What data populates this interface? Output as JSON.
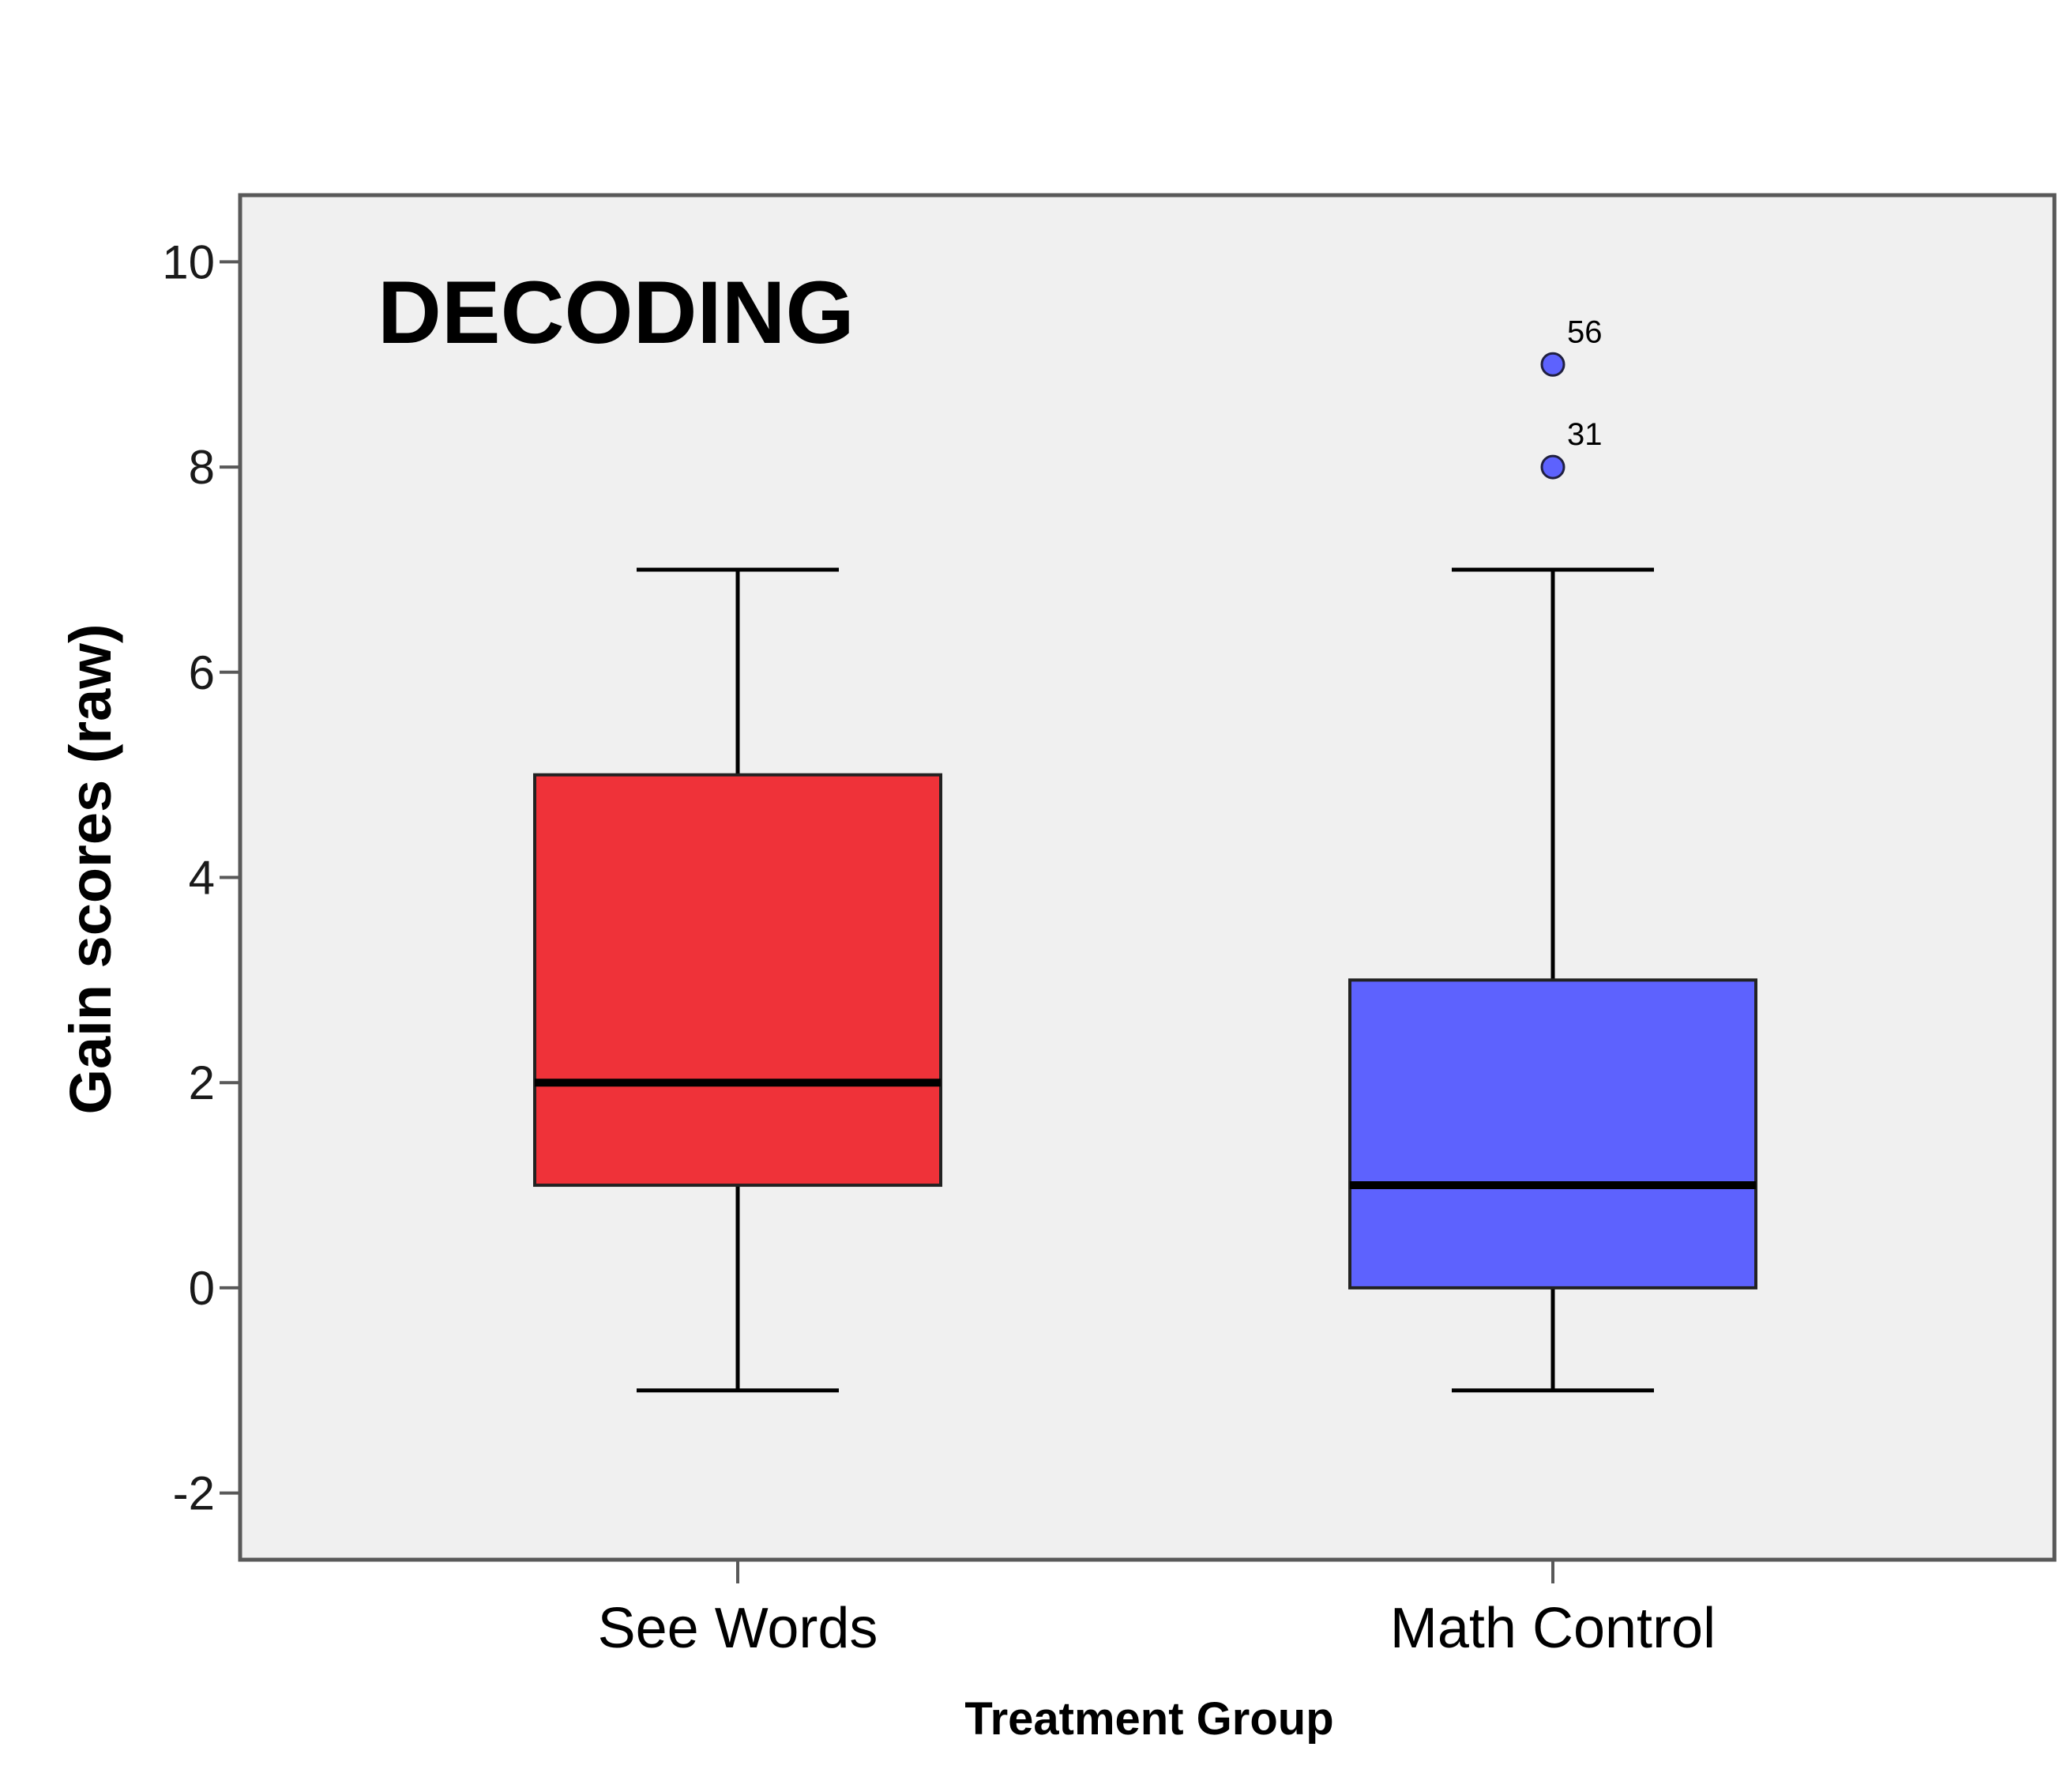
{
  "chart_data": {
    "type": "box",
    "title": "DECODING",
    "xlabel": "Treatment Group",
    "ylabel": "Gain scores (raw)",
    "ylim": [
      -2.65,
      10.65
    ],
    "yticks": [
      -2,
      0,
      2,
      4,
      6,
      8,
      10
    ],
    "categories": [
      "See Words",
      "Math Control"
    ],
    "grid": false,
    "legend": "none",
    "boxes": [
      {
        "category": "See Words",
        "whisker_low": -1,
        "q1": 1,
        "median": 2,
        "q3": 5,
        "whisker_high": 7,
        "color": "#ef3239",
        "outliers": []
      },
      {
        "category": "Math Control",
        "whisker_low": -1,
        "q1": 0,
        "median": 1,
        "q3": 3,
        "whisker_high": 7,
        "color": "#5d62fe",
        "outliers": [
          {
            "value": 8,
            "label": "31"
          },
          {
            "value": 9,
            "label": "56"
          }
        ]
      }
    ]
  },
  "colors": {
    "plot_background": "#f0f0f0",
    "frame": "#595959",
    "line": "#000000"
  }
}
